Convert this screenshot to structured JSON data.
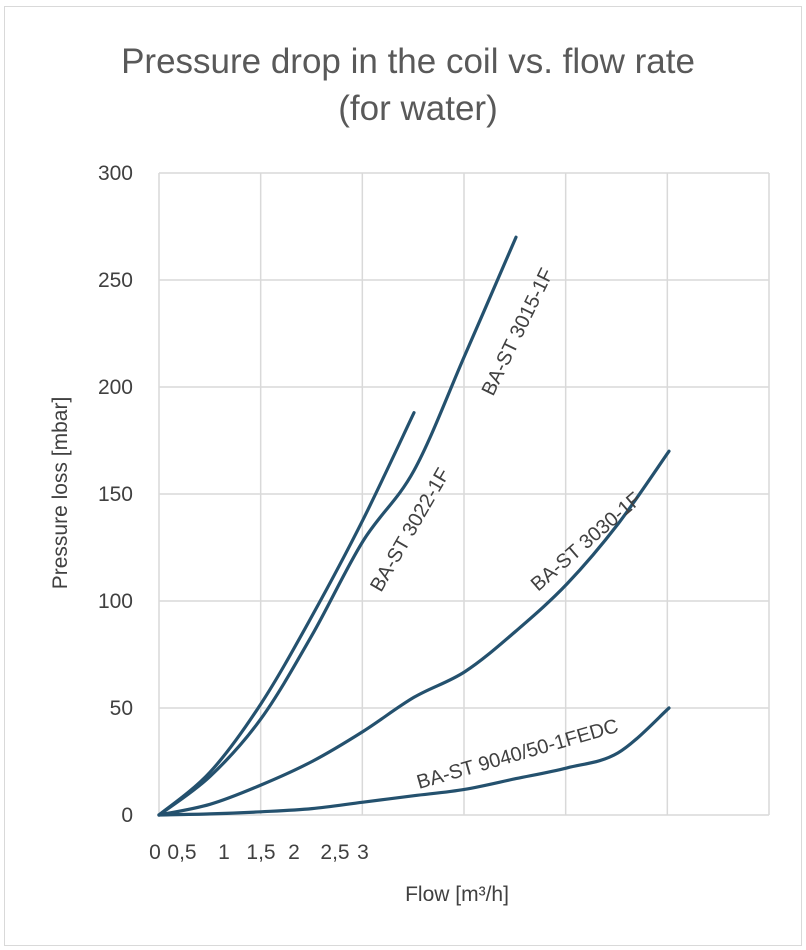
{
  "chart_data": {
    "type": "line",
    "title": "Pressure drop in the coil vs. flow rate (for water)",
    "title_lines": [
      "Pressure drop in the coil vs. flow rate",
      "(for water)"
    ],
    "xlabel": "Flow [m³/h]",
    "ylabel": "Pressure loss [mbar]",
    "x_tick_labels": [
      "0",
      "0,5",
      "1",
      "1,5",
      "2",
      "2,5",
      "3"
    ],
    "y_tick_labels": [
      "0",
      "50",
      "100",
      "150",
      "200",
      "250",
      "300"
    ],
    "y_ticks": [
      0,
      50,
      100,
      150,
      200,
      250,
      300
    ],
    "ylim": [
      0,
      300
    ],
    "grid": true,
    "legend": "none",
    "line_color": "#24516e",
    "series": [
      {
        "name": "BA-ST 3022-1F",
        "points": [
          [
            0,
            0
          ],
          [
            0.5,
            20
          ],
          [
            1,
            52
          ],
          [
            1.5,
            93
          ],
          [
            2,
            138
          ],
          [
            2.5,
            188
          ]
        ]
      },
      {
        "name": "BA-ST 3015-1F",
        "points": [
          [
            0,
            0
          ],
          [
            0.5,
            18
          ],
          [
            1,
            45
          ],
          [
            1.5,
            84
          ],
          [
            2,
            128
          ],
          [
            2.5,
            161
          ],
          [
            3,
            215
          ],
          [
            3.5,
            270
          ]
        ]
      },
      {
        "name": "BA-ST 3030-1F",
        "points": [
          [
            0,
            0
          ],
          [
            0.5,
            5
          ],
          [
            1,
            14
          ],
          [
            1.5,
            25
          ],
          [
            2,
            39
          ],
          [
            2.5,
            55
          ],
          [
            3,
            67
          ],
          [
            3.5,
            86
          ],
          [
            4,
            108
          ],
          [
            4.5,
            136
          ],
          [
            5,
            170
          ]
        ]
      },
      {
        "name": "BA-ST 9040/50-1FEDC",
        "points": [
          [
            0,
            0
          ],
          [
            0.5,
            0.5
          ],
          [
            1,
            1.5
          ],
          [
            1.5,
            3
          ],
          [
            2,
            6
          ],
          [
            2.5,
            9
          ],
          [
            3,
            12
          ],
          [
            3.5,
            17
          ],
          [
            4,
            22
          ],
          [
            4.5,
            29
          ],
          [
            5,
            50
          ]
        ]
      }
    ]
  }
}
